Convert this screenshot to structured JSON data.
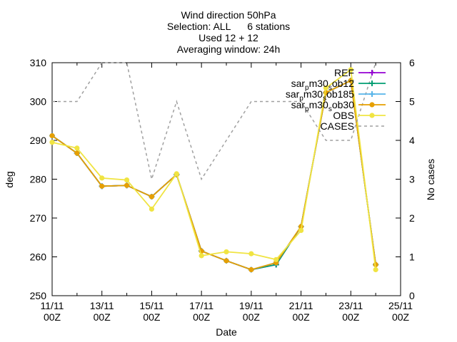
{
  "chart_data": {
    "type": "line",
    "title_lines": [
      "Wind direction 50hPa",
      "Selection: ALL      6 stations",
      "Used 12 + 12",
      "Averaging window: 24h"
    ],
    "xlabel": "Date",
    "ylabel": "deg",
    "y2label": "No cases",
    "ylim": [
      250,
      310
    ],
    "y2lim": [
      0,
      6
    ],
    "xlim": [
      0,
      14
    ],
    "yticks": [
      250,
      260,
      270,
      280,
      290,
      300,
      310
    ],
    "y2ticks": [
      0,
      1,
      2,
      3,
      4,
      5,
      6
    ],
    "xticks": [
      {
        "x": 0,
        "l1": "11/11",
        "l2": "00Z"
      },
      {
        "x": 2,
        "l1": "13/11",
        "l2": "00Z"
      },
      {
        "x": 4,
        "l1": "15/11",
        "l2": "00Z"
      },
      {
        "x": 6,
        "l1": "17/11",
        "l2": "00Z"
      },
      {
        "x": 8,
        "l1": "19/11",
        "l2": "00Z"
      },
      {
        "x": 10,
        "l1": "21/11",
        "l2": "00Z"
      },
      {
        "x": 12,
        "l1": "23/11",
        "l2": "00Z"
      },
      {
        "x": 14,
        "l1": "25/11",
        "l2": "00Z"
      }
    ],
    "x": [
      0,
      1,
      2,
      3,
      4,
      5,
      6,
      7,
      8,
      9,
      10,
      11,
      12,
      13
    ],
    "legend_position": "top-right",
    "series": [
      {
        "name": "REF",
        "color": "#9400d3",
        "marker": "plus",
        "axis": "y",
        "values": [
          291.2,
          286.7,
          278.2,
          278.4,
          275.5,
          281.2,
          261.5,
          259.0,
          256.7,
          258.0,
          267.8,
          302.3,
          305.4,
          258.0
        ]
      },
      {
        "name": "sar_pm30_sob12",
        "color": "#009e73",
        "marker": "plus",
        "axis": "y",
        "values": [
          291.2,
          286.7,
          278.2,
          278.4,
          275.5,
          281.2,
          261.5,
          259.0,
          256.7,
          258.0,
          267.8,
          302.3,
          305.4,
          258.0
        ]
      },
      {
        "name": "sar_pm30_sob185",
        "color": "#56b4e9",
        "marker": "plus",
        "axis": "y",
        "values": [
          291.2,
          286.7,
          278.2,
          278.4,
          275.5,
          281.2,
          261.5,
          259.0,
          256.7,
          258.5,
          267.8,
          302.3,
          305.4,
          258.0
        ]
      },
      {
        "name": "sar_pm30_sob30",
        "color": "#e69f00",
        "marker": "circle",
        "axis": "y",
        "values": [
          291.2,
          286.7,
          278.2,
          278.4,
          275.5,
          281.2,
          261.5,
          259.0,
          256.7,
          258.5,
          267.8,
          302.3,
          305.4,
          258.0
        ]
      },
      {
        "name": "OBS",
        "color": "#f0e442",
        "marker": "circle",
        "axis": "y",
        "values": [
          289.5,
          288.0,
          280.3,
          279.8,
          272.3,
          281.4,
          260.3,
          261.3,
          260.8,
          259.3,
          266.8,
          303.5,
          308.2,
          256.7
        ]
      },
      {
        "name": "CASES",
        "color": "#a0a0a0",
        "marker": "none",
        "dashed": true,
        "axis": "y2",
        "values": [
          5,
          5,
          6,
          6,
          3,
          5,
          3,
          4,
          5,
          5,
          5,
          4,
          4,
          6
        ]
      }
    ]
  }
}
